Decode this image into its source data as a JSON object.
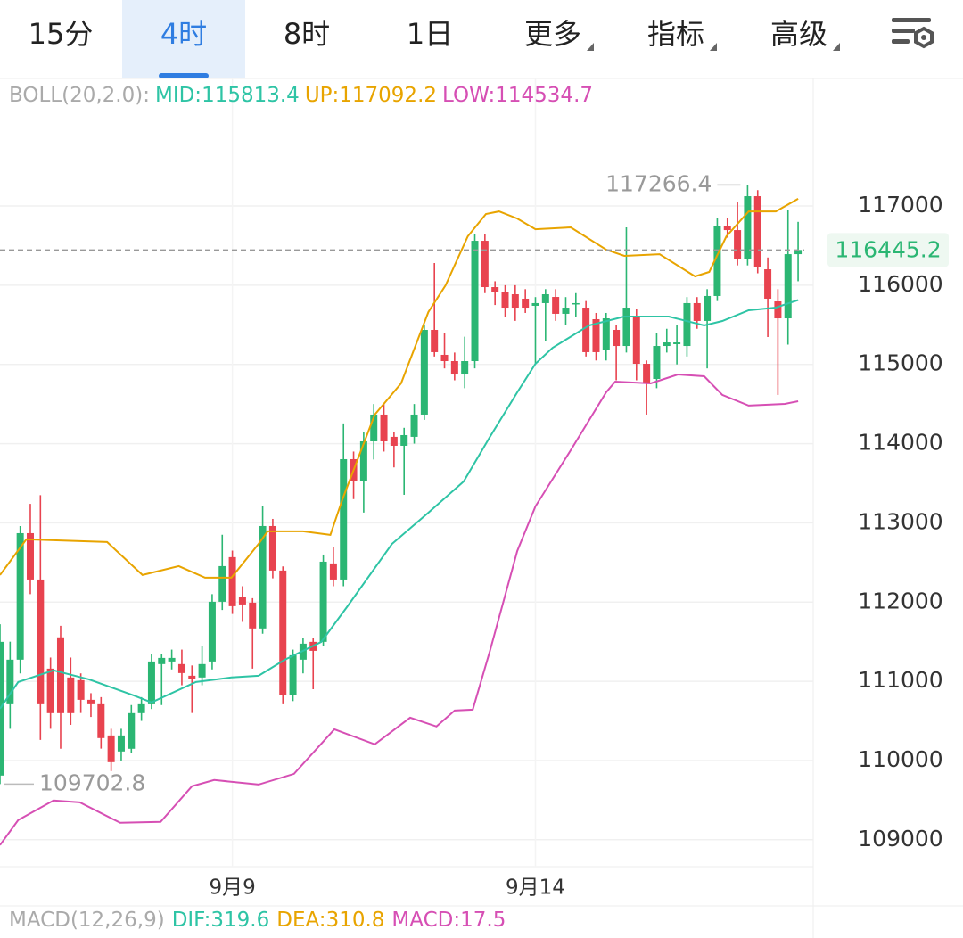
{
  "tabs": {
    "items": [
      {
        "label": "15分",
        "dropdown": false
      },
      {
        "label": "4时",
        "dropdown": false
      },
      {
        "label": "8时",
        "dropdown": false
      },
      {
        "label": "1日",
        "dropdown": false
      },
      {
        "label": "更多",
        "dropdown": true
      },
      {
        "label": "指标",
        "dropdown": true
      },
      {
        "label": "高级",
        "dropdown": true
      }
    ],
    "active": 1
  },
  "macd_header": {
    "label": "MACD(12,26,9)",
    "items": [
      {
        "label": "DIF:",
        "value": 319.6,
        "color": "#2ec4a5"
      },
      {
        "label": "DEA:",
        "value": 310.8,
        "color": "#e8a400"
      },
      {
        "label": "MACD:",
        "value": 17.5,
        "color": "#d64fb4"
      }
    ]
  },
  "chart_data": {
    "type": "candlestick",
    "boll_label": "BOLL(20,2.0):",
    "categories": [
      null,
      null,
      null,
      null,
      null,
      null,
      null,
      null,
      null,
      null,
      null,
      null,
      null,
      null,
      null,
      null,
      null,
      null,
      null,
      null,
      null,
      null,
      null,
      "9月9",
      null,
      null,
      null,
      null,
      null,
      null,
      null,
      null,
      null,
      null,
      null,
      null,
      null,
      null,
      null,
      null,
      null,
      null,
      null,
      null,
      null,
      null,
      null,
      null,
      null,
      null,
      null,
      null,
      null,
      "9月14",
      null,
      null,
      null,
      null,
      null,
      null,
      null,
      null,
      null,
      null,
      null,
      null,
      null,
      null,
      null,
      null,
      null,
      null,
      null,
      null,
      null,
      null,
      null,
      null,
      null,
      null
    ],
    "open": [
      109810,
      110710,
      111273,
      112870,
      112285,
      111160,
      111555,
      111048,
      111014,
      110766,
      110710,
      110316,
      110114,
      110148,
      110598,
      110710,
      111217,
      111250,
      111217,
      111070,
      111048,
      111250,
      112004,
      112567,
      112060,
      111993,
      111667,
      112960,
      112398,
      110823,
      111273,
      111498,
      111498,
      112488,
      112285,
      113804,
      113523,
      114029,
      114367,
      114086,
      113973,
      114086,
      114367,
      115436,
      115121,
      115042,
      114873,
      115042,
      116561,
      115976,
      115909,
      115886,
      115830,
      115740,
      115774,
      115852,
      115639,
      115762,
      115717,
      115571,
      115188,
      115436,
      115233,
      115605,
      115008,
      114817,
      115233,
      115256,
      115233,
      115774,
      115549,
      115864,
      116752,
      116696,
      116336,
      117124,
      116201,
      115796,
      115582,
      116392
    ],
    "high": [
      111720,
      111500,
      112960,
      113240,
      113350,
      111300,
      111700,
      111300,
      111100,
      110850,
      110800,
      110400,
      110400,
      110700,
      110800,
      111350,
      111350,
      111400,
      111400,
      111200,
      111450,
      112100,
      112850,
      112650,
      112200,
      112050,
      113208,
      113050,
      112450,
      111400,
      111550,
      111550,
      112600,
      112700,
      114255,
      113900,
      114150,
      114500,
      114500,
      114150,
      114200,
      114500,
      115500,
      116280,
      115400,
      115150,
      115350,
      116650,
      116650,
      116050,
      116000,
      116000,
      115950,
      115850,
      115950,
      115950,
      115850,
      115900,
      115800,
      115650,
      115650,
      115500,
      116730,
      115700,
      115050,
      115400,
      115450,
      115500,
      115850,
      115850,
      115950,
      116850,
      116850,
      117050,
      117266.4,
      117200,
      116350,
      115950,
      116950,
      116800
    ],
    "low": [
      109702.8,
      110400,
      111100,
      112100,
      110260,
      110400,
      110148,
      110450,
      110600,
      110550,
      110150,
      109866,
      110000,
      110100,
      110500,
      110650,
      110700,
      111150,
      110950,
      110600,
      110950,
      111150,
      111900,
      111850,
      111750,
      111160,
      111600,
      112300,
      110710,
      110750,
      111100,
      110900,
      111450,
      112200,
      112200,
      113300,
      113130,
      113800,
      113900,
      113700,
      113354,
      114000,
      114300,
      115100,
      114950,
      114800,
      114700,
      114950,
      115900,
      115750,
      115600,
      115550,
      115650,
      115000,
      115300,
      115550,
      115500,
      115600,
      115100,
      115050,
      115050,
      114800,
      115150,
      114800,
      114367,
      114700,
      115150,
      115000,
      115100,
      115450,
      114950,
      115800,
      116600,
      116250,
      116250,
      116150,
      115346,
      114615,
      115250,
      116050
    ],
    "close": [
      111498,
      111273,
      112870,
      112285,
      110710,
      110598,
      110598,
      110598,
      110766,
      110710,
      110283,
      109979,
      110316,
      110598,
      110710,
      111250,
      111295,
      111295,
      111104,
      111030,
      111217,
      112004,
      112454,
      111948,
      111970,
      111667,
      112960,
      112398,
      110823,
      111329,
      111475,
      111385,
      112510,
      112285,
      113804,
      113523,
      114029,
      114367,
      114029,
      113973,
      114108,
      114367,
      115436,
      115155,
      115042,
      114873,
      115042,
      116561,
      115976,
      115909,
      115717,
      115717,
      115717,
      115774,
      115886,
      115639,
      115717,
      115774,
      115155,
      115155,
      115582,
      115233,
      115717,
      115008,
      114761,
      115233,
      115278,
      115278,
      115774,
      115549,
      115864,
      116752,
      116696,
      116336,
      117124,
      116224,
      115830,
      115582,
      116392,
      116445.2
    ],
    "up_color": "#2bb673",
    "down_color": "#e8434f",
    "bands": [
      {
        "label": "MID:",
        "last": 115813.4,
        "color": "#2ec4a5",
        "x": [
          0,
          1.8,
          5.3,
          8.8,
          13.2,
          15,
          19.4,
          22.9,
          25.6,
          28.2,
          31.8,
          34.4,
          38.8,
          42.4,
          45.9,
          48.5,
          51.2,
          53,
          54.7,
          58.3,
          61.8,
          66.2,
          69.7,
          71.5,
          74.1,
          76.8,
          79
        ],
        "values": [
          110654,
          110991,
          111138,
          111025,
          110823,
          110733,
          110991,
          111048,
          111070,
          111273,
          111498,
          111948,
          112735,
          113129,
          113523,
          114086,
          114648,
          115008,
          115211,
          115492,
          115605,
          115605,
          115492,
          115549,
          115684,
          115717,
          115813
        ]
      },
      {
        "label": "UP:",
        "last": 117092.2,
        "color": "#e8a400",
        "x": [
          0,
          2.6,
          10.6,
          14.1,
          17.7,
          20.3,
          22.9,
          25.6,
          26.5,
          30,
          32.7,
          33.9,
          37.1,
          39.7,
          42.4,
          44.1,
          46.3,
          48.1,
          49.4,
          51.2,
          53,
          56.5,
          60,
          61.8,
          65.3,
          68.8,
          70.2,
          71.9,
          74.1,
          76.8,
          79
        ],
        "values": [
          112342,
          112792,
          112758,
          112342,
          112454,
          112308,
          112308,
          112735,
          112893,
          112893,
          112848,
          113298,
          114367,
          114761,
          115661,
          115999,
          116617,
          116899,
          116932,
          116842,
          116707,
          116730,
          116449,
          116370,
          116392,
          116111,
          116167,
          116617,
          116932,
          116932,
          117092
        ]
      },
      {
        "label": "LOW:",
        "last": 114534.7,
        "color": "#d64fb4",
        "x": [
          0,
          1.8,
          5.3,
          7.9,
          11.9,
          15.9,
          19,
          21.2,
          25.6,
          29.1,
          33.1,
          37.1,
          40.6,
          43.2,
          45,
          46.8,
          48.5,
          51.2,
          53,
          56.5,
          60,
          60.9,
          64.4,
          67.1,
          69.7,
          71.5,
          74.1,
          77.7,
          79
        ],
        "values": [
          108932,
          109247,
          109495,
          109472,
          109214,
          109225,
          109675,
          109754,
          109697,
          109832,
          110395,
          110204,
          110541,
          110429,
          110631,
          110642,
          111385,
          112645,
          113208,
          113917,
          114648,
          114783,
          114761,
          114873,
          114851,
          114615,
          114480,
          114502,
          114535
        ]
      }
    ],
    "max_label": 117266.4,
    "min_label": 109702.8,
    "last_price": 116445.2,
    "ylim": [
      108660,
      118610
    ],
    "yticks": [
      109000,
      110000,
      111000,
      112000,
      113000,
      114000,
      115000,
      116000,
      117000
    ],
    "grid": true
  }
}
